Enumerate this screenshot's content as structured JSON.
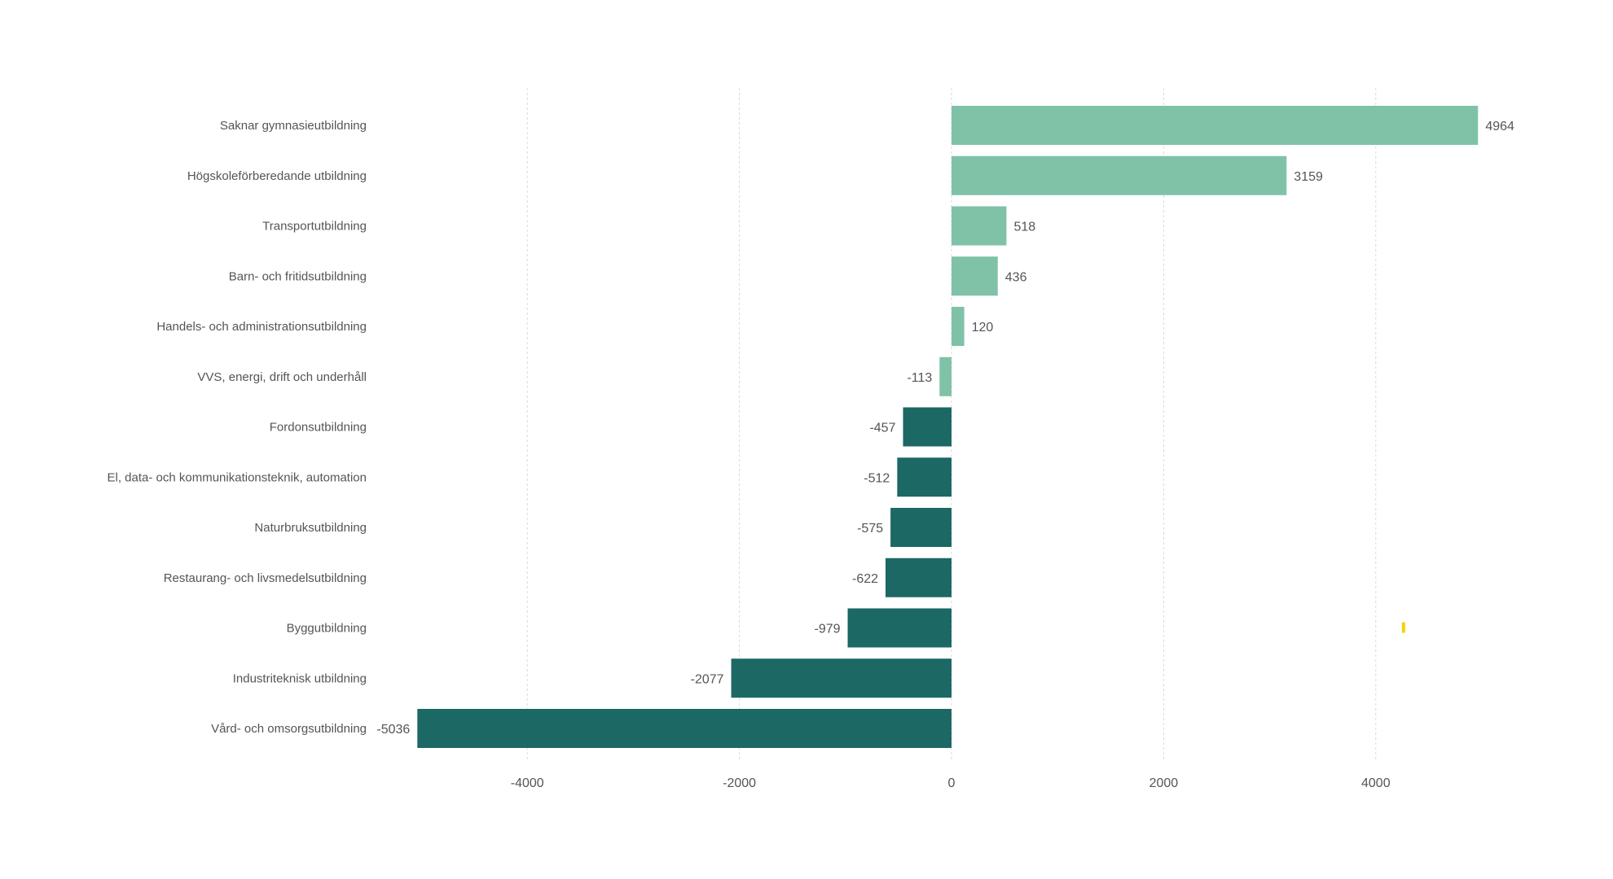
{
  "chart_data": {
    "type": "bar",
    "orientation": "horizontal",
    "title": "",
    "xlabel": "",
    "ylabel": "",
    "xlim": [
      -5036,
      5200
    ],
    "xticks": [
      -4000,
      -2000,
      0,
      2000,
      4000
    ],
    "xtick_labels": [
      "-4000",
      "-2000",
      "0",
      "2000",
      "4000"
    ],
    "grid": "vertical dotted",
    "legend": "none",
    "categories": [
      "Saknar gymnasieutbildning",
      "Högskoleförberedande utbildning",
      "Transportutbildning",
      "Barn- och fritidsutbildning",
      "Handels- och administrationsutbildning",
      "VVS, energi, drift och underhåll",
      "Fordonsutbildning",
      "El, data- och kommunikationsteknik, automation",
      "Naturbruksutbildning",
      "Restaurang- och livsmedelsutbildning",
      "Byggutbildning",
      "Industriteknisk utbildning",
      "Vård- och omsorgsutbildning"
    ],
    "values": [
      4964,
      3159,
      518,
      436,
      120,
      -113,
      -457,
      -512,
      -575,
      -622,
      -979,
      -2077,
      -5036
    ],
    "value_labels": [
      "4964",
      "3159",
      "518",
      "436",
      "120",
      "-113",
      "-457",
      "-512",
      "-575",
      "-622",
      "-979",
      "-2077",
      "-5036"
    ],
    "bar_color_groups": [
      "light",
      "light",
      "light",
      "light",
      "light",
      "light",
      "dark",
      "dark",
      "dark",
      "dark",
      "dark",
      "dark",
      "dark"
    ]
  },
  "colors": {
    "light": "#7fc2a7",
    "dark": "#1b6865",
    "grid": "#d9d9d9",
    "text": "#555555",
    "marker": "#f2d400"
  },
  "annotations": {
    "marker_value": 4200,
    "marker_category_index": 10
  }
}
